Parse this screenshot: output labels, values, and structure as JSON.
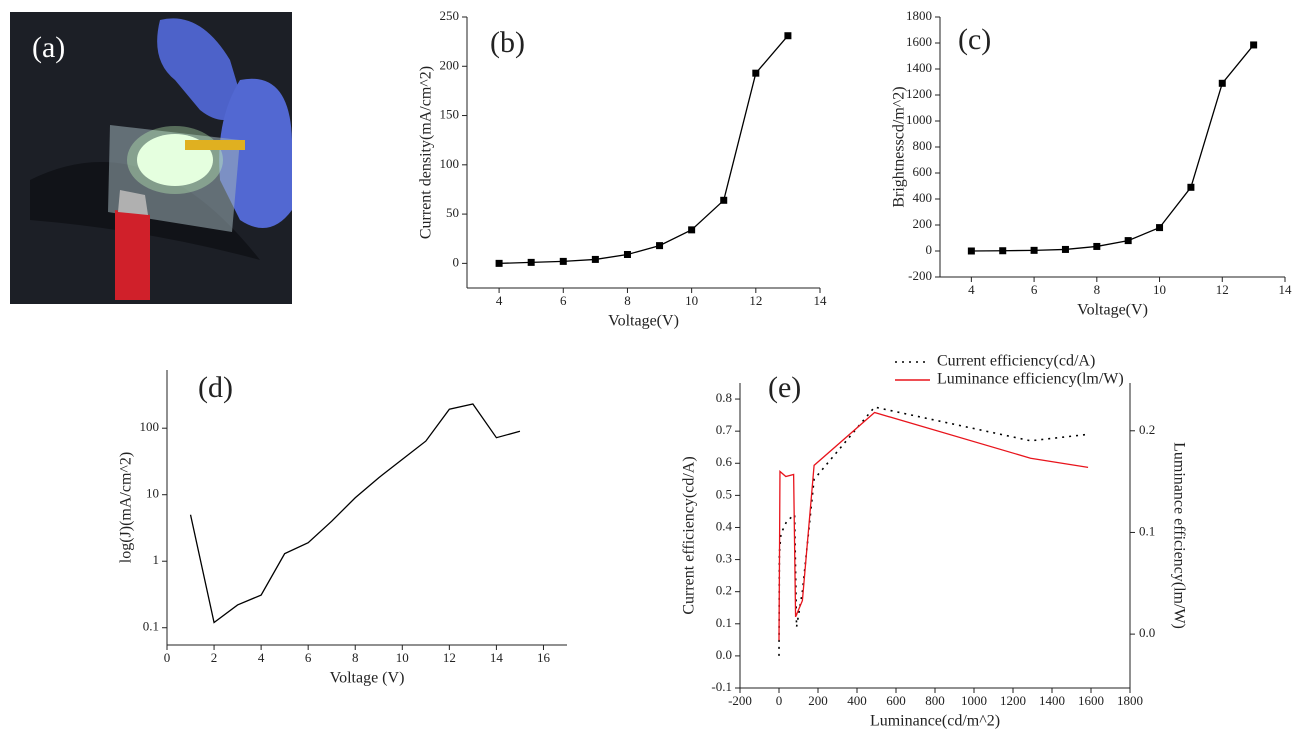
{
  "photo": {
    "label": "(a)"
  },
  "chart_data": [
    {
      "type": "line",
      "label": "(b)",
      "xlabel": "Voltage(V)",
      "ylabel": "Current density(mA/cm^2)",
      "x": [
        4,
        5,
        6,
        7,
        8,
        9,
        10,
        11,
        12,
        13
      ],
      "values": [
        0,
        1,
        2,
        4,
        9,
        18,
        34,
        64,
        193,
        231
      ],
      "color": "#000000",
      "marker": "square",
      "xlim": [
        3,
        14
      ],
      "xticks": [
        4,
        6,
        8,
        10,
        12,
        14
      ],
      "ylim": [
        -25,
        250
      ],
      "yticks": [
        0,
        50,
        100,
        150,
        200,
        250
      ]
    },
    {
      "type": "line",
      "label": "(c)",
      "xlabel": "Voltage(V)",
      "ylabel": "Brightnesscd/m^2)",
      "x": [
        4,
        5,
        6,
        7,
        8,
        9,
        10,
        11,
        12,
        13
      ],
      "values": [
        0,
        2,
        5,
        12,
        35,
        80,
        180,
        490,
        1290,
        1585
      ],
      "color": "#000000",
      "marker": "square",
      "xlim": [
        3,
        14
      ],
      "xticks": [
        4,
        6,
        8,
        10,
        12,
        14
      ],
      "ylim": [
        -200,
        1800
      ],
      "yticks": [
        -200,
        0,
        200,
        400,
        600,
        800,
        1000,
        1200,
        1400,
        1600,
        1800
      ]
    },
    {
      "type": "line",
      "label": "(d)",
      "xlabel": "Voltage (V)",
      "ylabel": "log(J)(mA/cm^2)",
      "log_y": true,
      "x": [
        1,
        2,
        3,
        4,
        5,
        6,
        7,
        8,
        9,
        10,
        11,
        12,
        13,
        14,
        15
      ],
      "values": [
        5,
        0.12,
        0.22,
        0.31,
        1.3,
        1.9,
        4,
        9,
        18,
        34,
        64,
        193,
        231,
        72,
        90
      ],
      "color": "#000000",
      "xlim": [
        0,
        17
      ],
      "xticks": [
        0,
        2,
        4,
        6,
        8,
        10,
        12,
        14,
        16
      ],
      "ylim": [
        0.055,
        750
      ],
      "yticks": [
        0.1,
        1,
        10,
        100
      ]
    },
    {
      "type": "line",
      "label": "(e)",
      "xlabel": "Luminance(cd/m^2)",
      "ylabel": "Current efficiency(cd/A)",
      "y2label": "Luminance efficiency(lm/W)",
      "xlim": [
        -200,
        1800
      ],
      "xticks": [
        -200,
        0,
        200,
        400,
        600,
        800,
        1000,
        1200,
        1400,
        1600,
        1800
      ],
      "ylim": [
        -0.1,
        0.85
      ],
      "yticks": [
        -0.1,
        {
          "value": 0,
          "label": "0.0"
        },
        0.1,
        0.2,
        0.3,
        0.4,
        0.5,
        0.6,
        0.7,
        0.8
      ],
      "y2lim": [
        -0.053,
        0.247
      ],
      "y2ticks": [
        {
          "value": 0,
          "label": "0.0"
        },
        0.1,
        0.2
      ],
      "series": [
        {
          "name": "Current efficiency(cd/A)",
          "color": "#000000",
          "style": "dotted",
          "x": [
            0,
            2,
            10,
            40,
            80,
            90,
            120,
            180,
            490,
            1290,
            1585
          ],
          "values": [
            0,
            0.32,
            0.38,
            0.42,
            0.44,
            0.09,
            0.2,
            0.55,
            0.775,
            0.67,
            0.69
          ]
        },
        {
          "name": "Luminance efficiency(lm/W)",
          "color": "#e8141c",
          "style": "solid",
          "axis": "y2",
          "x": [
            0,
            5,
            35,
            75,
            85,
            120,
            180,
            490,
            1290,
            1585
          ],
          "values": [
            -0.006,
            0.16,
            0.155,
            0.157,
            0.017,
            0.033,
            0.166,
            0.218,
            0.173,
            0.164
          ]
        }
      ]
    }
  ]
}
